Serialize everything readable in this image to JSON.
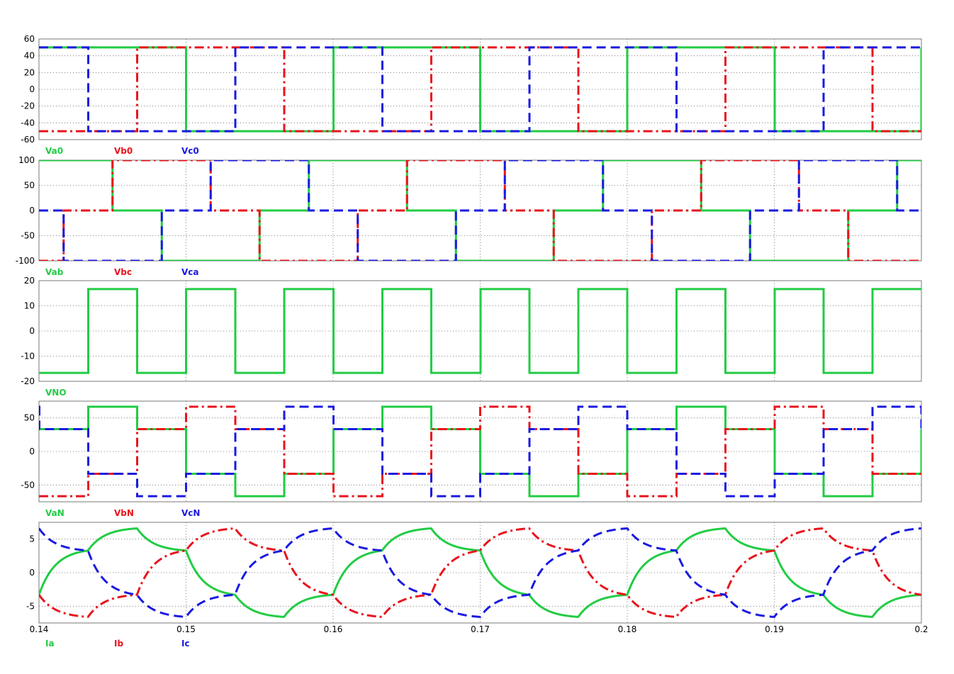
{
  "chart_data": [
    {
      "type": "line",
      "xlim": [
        0.14,
        0.2
      ],
      "ylim": [
        -60,
        60
      ],
      "y_ticks": [
        "60",
        "40",
        "20",
        "0",
        "-20",
        "-40",
        "-60"
      ],
      "grid": true,
      "legend_position": "bottom-left",
      "series": [
        {
          "name": "Va0",
          "color": "#22cc44",
          "style": "solid",
          "shape": "square",
          "amplitude": 50,
          "phase_deg": 0
        },
        {
          "name": "Vb0",
          "color": "#e8141c",
          "style": "dashdot",
          "shape": "square",
          "amplitude": 50,
          "phase_deg": -120
        },
        {
          "name": "Vc0",
          "color": "#1a1ae0",
          "style": "dashed",
          "shape": "square",
          "amplitude": 50,
          "phase_deg": 120
        }
      ]
    },
    {
      "type": "line",
      "xlim": [
        0.14,
        0.2
      ],
      "ylim": [
        -100,
        100
      ],
      "y_ticks": [
        "100",
        "50",
        "0",
        "-50",
        "-100"
      ],
      "grid": true,
      "legend_position": "bottom-left",
      "series": [
        {
          "name": "Vab",
          "color": "#22cc44",
          "style": "solid",
          "shape": "quasi-square",
          "amplitude": 100,
          "phase_deg": 30
        },
        {
          "name": "Vbc",
          "color": "#e8141c",
          "style": "dashdot",
          "shape": "quasi-square",
          "amplitude": 100,
          "phase_deg": -90
        },
        {
          "name": "Vca",
          "color": "#1a1ae0",
          "style": "dashed",
          "shape": "quasi-square",
          "amplitude": 100,
          "phase_deg": 150
        }
      ]
    },
    {
      "type": "line",
      "xlim": [
        0.14,
        0.2
      ],
      "ylim": [
        -20,
        20
      ],
      "y_ticks": [
        "20",
        "10",
        "0",
        "-10",
        "-20"
      ],
      "grid": true,
      "legend_position": "bottom-left",
      "series": [
        {
          "name": "VNO",
          "color": "#22cc44",
          "style": "solid",
          "shape": "square-3f",
          "amplitude": 16.67,
          "phase_deg": 0
        }
      ]
    },
    {
      "type": "line",
      "xlim": [
        0.14,
        0.2
      ],
      "ylim": [
        -75,
        75
      ],
      "y_ticks": [
        "50",
        "0",
        "-50"
      ],
      "grid": true,
      "legend_position": "bottom-left",
      "series": [
        {
          "name": "VaN",
          "color": "#22cc44",
          "style": "solid",
          "shape": "six-step",
          "amplitude": 66.67,
          "phase_deg": 0
        },
        {
          "name": "VbN",
          "color": "#e8141c",
          "style": "dashdot",
          "shape": "six-step",
          "amplitude": 66.67,
          "phase_deg": -120
        },
        {
          "name": "VcN",
          "color": "#1a1ae0",
          "style": "dashed",
          "shape": "six-step",
          "amplitude": 66.67,
          "phase_deg": 120
        }
      ]
    },
    {
      "type": "line",
      "xlim": [
        0.14,
        0.2
      ],
      "ylim": [
        -7.5,
        7.5
      ],
      "y_ticks": [
        "5",
        "0",
        "-5"
      ],
      "x_ticks": [
        "0.14",
        "0.15",
        "0.16",
        "0.17",
        "0.18",
        "0.19",
        "0.2"
      ],
      "grid": true,
      "legend_position": "bottom-left",
      "series": [
        {
          "name": "Ia",
          "color": "#22cc44",
          "style": "solid",
          "shape": "rl-current",
          "amplitude": 6.6,
          "phase_deg": 0
        },
        {
          "name": "Ib",
          "color": "#e8141c",
          "style": "dashdot",
          "shape": "rl-current",
          "amplitude": 6.6,
          "phase_deg": -120
        },
        {
          "name": "Ic",
          "color": "#1a1ae0",
          "style": "dashed",
          "shape": "rl-current",
          "amplitude": 6.6,
          "phase_deg": 120
        }
      ]
    }
  ]
}
